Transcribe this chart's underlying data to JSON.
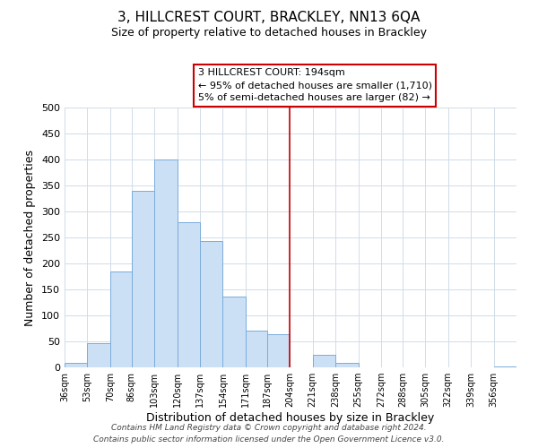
{
  "title": "3, HILLCREST COURT, BRACKLEY, NN13 6QA",
  "subtitle": "Size of property relative to detached houses in Brackley",
  "xlabel": "Distribution of detached houses by size in Brackley",
  "ylabel": "Number of detached properties",
  "bar_color": "#cce0f5",
  "bar_edge_color": "#7aacdc",
  "grid_color": "#d0dce8",
  "vline_color": "#cc0000",
  "vline_x": 204,
  "bin_edges": [
    36,
    53,
    70,
    86,
    103,
    120,
    137,
    154,
    171,
    187,
    204,
    221,
    238,
    255,
    272,
    288,
    305,
    322,
    339,
    356,
    373
  ],
  "bin_heights": [
    8,
    47,
    185,
    340,
    400,
    280,
    243,
    137,
    70,
    63,
    0,
    25,
    9,
    0,
    0,
    0,
    0,
    0,
    0,
    2
  ],
  "ylim": [
    0,
    500
  ],
  "yticks": [
    0,
    50,
    100,
    150,
    200,
    250,
    300,
    350,
    400,
    450,
    500
  ],
  "annotation_title": "3 HILLCREST COURT: 194sqm",
  "annotation_line1": "← 95% of detached houses are smaller (1,710)",
  "annotation_line2": "5% of semi-detached houses are larger (82) →",
  "footer_line1": "Contains HM Land Registry data © Crown copyright and database right 2024.",
  "footer_line2": "Contains public sector information licensed under the Open Government Licence v3.0.",
  "background_color": "#ffffff",
  "title_fontsize": 11,
  "subtitle_fontsize": 9,
  "xlabel_fontsize": 9,
  "ylabel_fontsize": 9,
  "tick_fontsize": 7,
  "ytick_fontsize": 8,
  "footer_fontsize": 6.5,
  "ann_fontsize": 8
}
